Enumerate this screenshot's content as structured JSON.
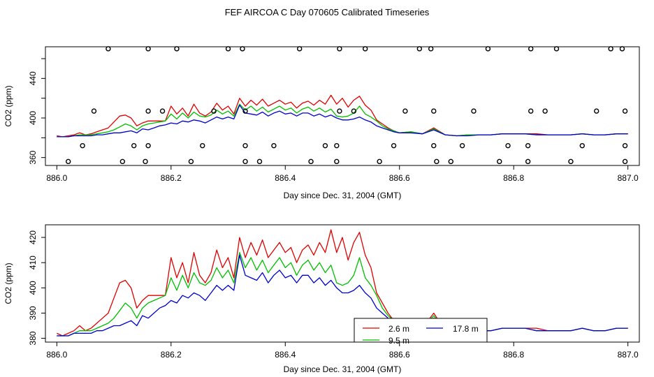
{
  "title": "FEF AIRCOA C  Day 070605  Calibrated Timeseries",
  "colors": {
    "series_red": "#e00000",
    "series_green": "#00c000",
    "series_blue": "#0000d0",
    "markers": "#000000"
  },
  "chart_data": [
    {
      "type": "line",
      "panel": "top",
      "xlabel": "Day since Dec. 31, 2004 (GMT)",
      "ylabel": "CO2 (ppm)",
      "xlim": [
        885.98,
        887.02
      ],
      "ylim": [
        352,
        472
      ],
      "xticks": [
        886.0,
        886.2,
        886.4,
        886.6,
        886.8,
        887.0
      ],
      "xtick_labels": [
        "886.0",
        "886.2",
        "886.4",
        "886.6",
        "886.8",
        "887.0"
      ],
      "yticks": [
        360,
        400,
        440
      ],
      "ytick_labels": [
        "360",
        "400",
        "440"
      ],
      "grid": false,
      "legend": "none",
      "markers": {
        "y470": [
          886.09,
          886.16,
          886.21,
          886.3,
          886.325,
          886.425,
          886.495,
          886.54,
          886.635,
          886.655,
          886.755,
          886.83,
          886.875,
          886.97,
          886.99
        ],
        "y407": [
          886.065,
          886.16,
          886.185,
          886.275,
          886.33,
          886.495,
          886.52,
          886.61,
          886.66,
          886.73,
          886.83,
          886.855,
          886.945,
          886.995
        ],
        "y372": [
          886.045,
          886.135,
          886.16,
          886.255,
          886.33,
          886.38,
          886.47,
          886.49,
          886.59,
          886.66,
          886.71,
          886.79,
          886.825,
          886.92,
          886.995
        ],
        "y356": [
          886.02,
          886.115,
          886.155,
          886.235,
          886.33,
          886.355,
          886.445,
          886.49,
          886.565,
          886.665,
          886.69,
          886.775,
          886.825,
          886.9,
          886.995
        ]
      }
    },
    {
      "type": "line",
      "panel": "bottom",
      "xlabel": "Day since Dec. 31, 2004 (GMT)",
      "ylabel": "CO2 (ppm)",
      "xlim": [
        885.98,
        887.02
      ],
      "ylim": [
        378.5,
        425
      ],
      "xticks": [
        886.0,
        886.2,
        886.4,
        886.6,
        886.8,
        887.0
      ],
      "xtick_labels": [
        "886.0",
        "886.2",
        "886.4",
        "886.6",
        "886.8",
        "887.0"
      ],
      "yticks": [
        380,
        390,
        400,
        410,
        420
      ],
      "ytick_labels": [
        "380",
        "390",
        "400",
        "410",
        "420"
      ],
      "grid": false,
      "legend": "bottom-center",
      "legend_entries": [
        "2.6 m",
        "17.8 m",
        "9.5 m"
      ]
    }
  ],
  "series": [
    {
      "name": "2.6 m",
      "color": "#e00000",
      "x": [
        886.0,
        886.01,
        886.02,
        886.03,
        886.04,
        886.05,
        886.06,
        886.07,
        886.08,
        886.09,
        886.1,
        886.11,
        886.12,
        886.13,
        886.14,
        886.15,
        886.16,
        886.17,
        886.18,
        886.19,
        886.2,
        886.21,
        886.22,
        886.23,
        886.24,
        886.25,
        886.26,
        886.27,
        886.28,
        886.29,
        886.3,
        886.31,
        886.32,
        886.33,
        886.34,
        886.35,
        886.36,
        886.37,
        886.38,
        886.39,
        886.4,
        886.41,
        886.42,
        886.43,
        886.44,
        886.45,
        886.46,
        886.47,
        886.48,
        886.49,
        886.5,
        886.51,
        886.52,
        886.53,
        886.54,
        886.55,
        886.56,
        886.57,
        886.58,
        886.59,
        886.6,
        886.62,
        886.64,
        886.66,
        886.68,
        886.7,
        886.72,
        886.74,
        886.76,
        886.78,
        886.8,
        886.82,
        886.84,
        886.86,
        886.88,
        886.9,
        886.92,
        886.94,
        886.96,
        886.98,
        887.0
      ],
      "y": [
        382,
        381,
        382,
        383,
        385,
        383,
        384,
        386,
        388,
        390,
        396,
        402,
        403,
        400,
        392,
        395,
        397,
        397,
        397,
        397,
        412,
        404,
        410,
        402,
        414,
        405,
        402,
        406,
        415,
        408,
        412,
        404,
        420,
        412,
        418,
        413,
        419,
        412,
        415,
        418,
        414,
        416,
        410,
        415,
        417,
        413,
        418,
        414,
        423,
        414,
        420,
        411,
        418,
        422,
        413,
        408,
        398,
        394,
        390,
        387,
        385,
        386,
        384,
        390,
        383,
        382,
        383,
        383,
        383,
        384,
        384,
        384,
        384,
        383,
        383,
        383,
        384,
        383,
        383,
        384,
        384
      ]
    },
    {
      "name": "9.5 m",
      "color": "#00c000",
      "x": [
        886.0,
        886.01,
        886.02,
        886.03,
        886.04,
        886.05,
        886.06,
        886.07,
        886.08,
        886.09,
        886.1,
        886.11,
        886.12,
        886.13,
        886.14,
        886.15,
        886.16,
        886.17,
        886.18,
        886.19,
        886.2,
        886.21,
        886.22,
        886.23,
        886.24,
        886.25,
        886.26,
        886.27,
        886.28,
        886.29,
        886.3,
        886.31,
        886.32,
        886.33,
        886.34,
        886.35,
        886.36,
        886.37,
        886.38,
        886.39,
        886.4,
        886.41,
        886.42,
        886.43,
        886.44,
        886.45,
        886.46,
        886.47,
        886.48,
        886.49,
        886.5,
        886.51,
        886.52,
        886.53,
        886.54,
        886.55,
        886.56,
        886.57,
        886.58,
        886.59,
        886.6,
        886.62,
        886.64,
        886.66,
        886.68,
        886.7,
        886.72,
        886.74,
        886.76,
        886.78,
        886.8,
        886.82,
        886.84,
        886.86,
        886.88,
        886.9,
        886.92,
        886.94,
        886.96,
        886.98,
        887.0
      ],
      "y": [
        381,
        381,
        381,
        382,
        383,
        383,
        383,
        384,
        385,
        386,
        388,
        391,
        394,
        392,
        388,
        392,
        394,
        395,
        396,
        397,
        404,
        399,
        405,
        400,
        406,
        402,
        401,
        403,
        408,
        404,
        407,
        402,
        414,
        408,
        412,
        407,
        411,
        406,
        409,
        412,
        408,
        410,
        405,
        409,
        411,
        407,
        410,
        406,
        409,
        402,
        401,
        402,
        405,
        412,
        404,
        401,
        397,
        392,
        389,
        387,
        385,
        386,
        384,
        389,
        383,
        382,
        383,
        383,
        383,
        384,
        384,
        384,
        383,
        383,
        383,
        383,
        384,
        383,
        383,
        384,
        384
      ]
    },
    {
      "name": "17.8 m",
      "color": "#0000d0",
      "x": [
        886.0,
        886.01,
        886.02,
        886.03,
        886.04,
        886.05,
        886.06,
        886.07,
        886.08,
        886.09,
        886.1,
        886.11,
        886.12,
        886.13,
        886.14,
        886.15,
        886.16,
        886.17,
        886.18,
        886.19,
        886.2,
        886.21,
        886.22,
        886.23,
        886.24,
        886.25,
        886.26,
        886.27,
        886.28,
        886.29,
        886.3,
        886.31,
        886.32,
        886.33,
        886.34,
        886.35,
        886.36,
        886.37,
        886.38,
        886.39,
        886.4,
        886.41,
        886.42,
        886.43,
        886.44,
        886.45,
        886.46,
        886.47,
        886.48,
        886.49,
        886.5,
        886.51,
        886.52,
        886.53,
        886.54,
        886.55,
        886.56,
        886.57,
        886.58,
        886.59,
        886.6,
        886.62,
        886.64,
        886.66,
        886.68,
        886.7,
        886.72,
        886.74,
        886.76,
        886.78,
        886.8,
        886.82,
        886.84,
        886.86,
        886.88,
        886.9,
        886.92,
        886.94,
        886.96,
        886.98,
        887.0
      ],
      "y": [
        381,
        381,
        381,
        382,
        382,
        382,
        382,
        383,
        383,
        384,
        385,
        385,
        386,
        387,
        385,
        389,
        388,
        390,
        392,
        393,
        395,
        394,
        397,
        396,
        398,
        397,
        395,
        398,
        401,
        399,
        401,
        399,
        413,
        405,
        404,
        403,
        406,
        402,
        405,
        407,
        404,
        405,
        402,
        405,
        405,
        402,
        404,
        401,
        403,
        400,
        398,
        398,
        399,
        401,
        398,
        396,
        392,
        390,
        388,
        386,
        385,
        385,
        384,
        388,
        383,
        382,
        382,
        383,
        383,
        384,
        384,
        384,
        383,
        383,
        383,
        383,
        384,
        383,
        383,
        384,
        384
      ]
    }
  ]
}
